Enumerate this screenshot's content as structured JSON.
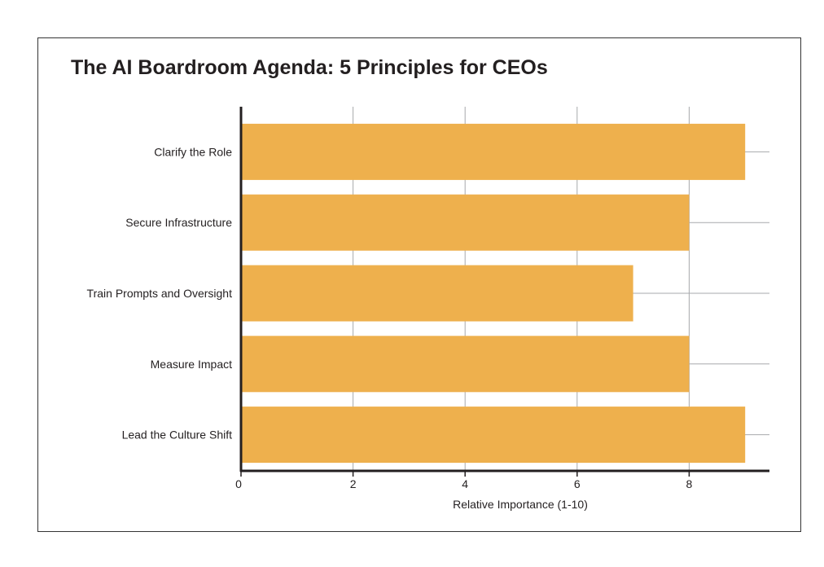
{
  "chart_data": {
    "type": "bar",
    "orientation": "horizontal",
    "title": "The AI Boardroom Agenda: 5 Principles for CEOs",
    "categories": [
      "Clarify the Role",
      "Secure Infrastructure",
      "Train Prompts and Oversight",
      "Measure Impact",
      "Lead the Culture Shift"
    ],
    "values": [
      9,
      8,
      7,
      8,
      9
    ],
    "xlabel": "Relative Importance (1-10)",
    "ylabel": "",
    "xlim": [
      0,
      9.5
    ],
    "xticks": [
      0,
      2,
      4,
      6,
      8
    ],
    "grid": true,
    "bar_color": "#EEB04D"
  }
}
